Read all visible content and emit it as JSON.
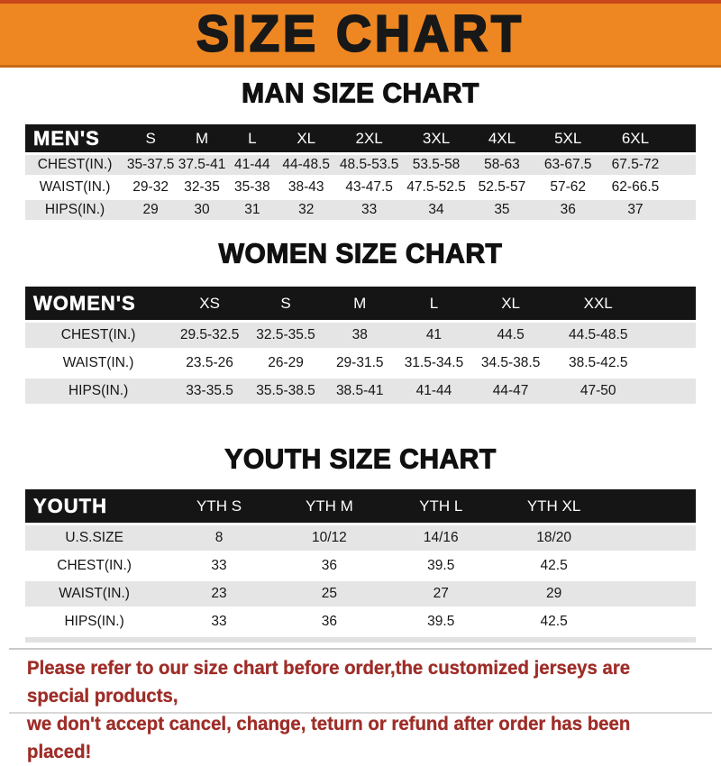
{
  "banner": {
    "title": "SIZE CHART"
  },
  "colors": {
    "banner-orange": "#EE8722",
    "banner-top": "#C9461C",
    "banner-bottom": "#C96A15",
    "bar-black": "#151515",
    "stripe-gray": "#E5E5E5",
    "footer-red": "#9E2D28",
    "divider": "#C9C9C9"
  },
  "sections": {
    "men": {
      "title": "MAN SIZE CHART",
      "header_label": "MEN'S",
      "columns": [
        "S",
        "M",
        "L",
        "XL",
        "2XL",
        "3XL",
        "4XL",
        "5XL",
        "6XL"
      ],
      "rows": [
        {
          "label": "CHEST(IN.)",
          "values": [
            "35-37.5",
            "37.5-41",
            "41-44",
            "44-48.5",
            "48.5-53.5",
            "53.5-58",
            "58-63",
            "63-67.5",
            "67.5-72"
          ]
        },
        {
          "label": "WAIST(IN.)",
          "values": [
            "29-32",
            "32-35",
            "35-38",
            "38-43",
            "43-47.5",
            "47.5-52.5",
            "52.5-57",
            "57-62",
            "62-66.5"
          ]
        },
        {
          "label": "HIPS(IN.)",
          "values": [
            "29",
            "30",
            "31",
            "32",
            "33",
            "34",
            "35",
            "36",
            "37"
          ]
        }
      ]
    },
    "women": {
      "title": "WOMEN SIZE CHART",
      "header_label": "WOMEN'S",
      "columns": [
        "XS",
        "S",
        "M",
        "L",
        "XL",
        "XXL"
      ],
      "rows": [
        {
          "label": "CHEST(IN.)",
          "values": [
            "29.5-32.5",
            "32.5-35.5",
            "38",
            "41",
            "44.5",
            "44.5-48.5"
          ]
        },
        {
          "label": "WAIST(IN.)",
          "values": [
            "23.5-26",
            "26-29",
            "29-31.5",
            "31.5-34.5",
            "34.5-38.5",
            "38.5-42.5"
          ]
        },
        {
          "label": "HIPS(IN.)",
          "values": [
            "33-35.5",
            "35.5-38.5",
            "38.5-41",
            "41-44",
            "44-47",
            "47-50"
          ]
        }
      ]
    },
    "youth": {
      "title": "YOUTH SIZE CHART",
      "header_label": "YOUTH",
      "columns": [
        "YTH S",
        "YTH M",
        "YTH L",
        "YTH XL"
      ],
      "rows": [
        {
          "label": "U.S.SIZE",
          "values": [
            "8",
            "10/12",
            "14/16",
            "18/20"
          ]
        },
        {
          "label": "CHEST(IN.)",
          "values": [
            "33",
            "36",
            "39.5",
            "42.5"
          ]
        },
        {
          "label": "WAIST(IN.)",
          "values": [
            "23",
            "25",
            "27",
            "29"
          ]
        },
        {
          "label": "HIPS(IN.)",
          "values": [
            "33",
            "36",
            "39.5",
            "42.5"
          ]
        }
      ]
    }
  },
  "footer": {
    "line1": "Please refer to our size chart before order,the customized jerseys are special products,",
    "line2": "we don't accept cancel, change, teturn or refund after order has been placed!"
  }
}
